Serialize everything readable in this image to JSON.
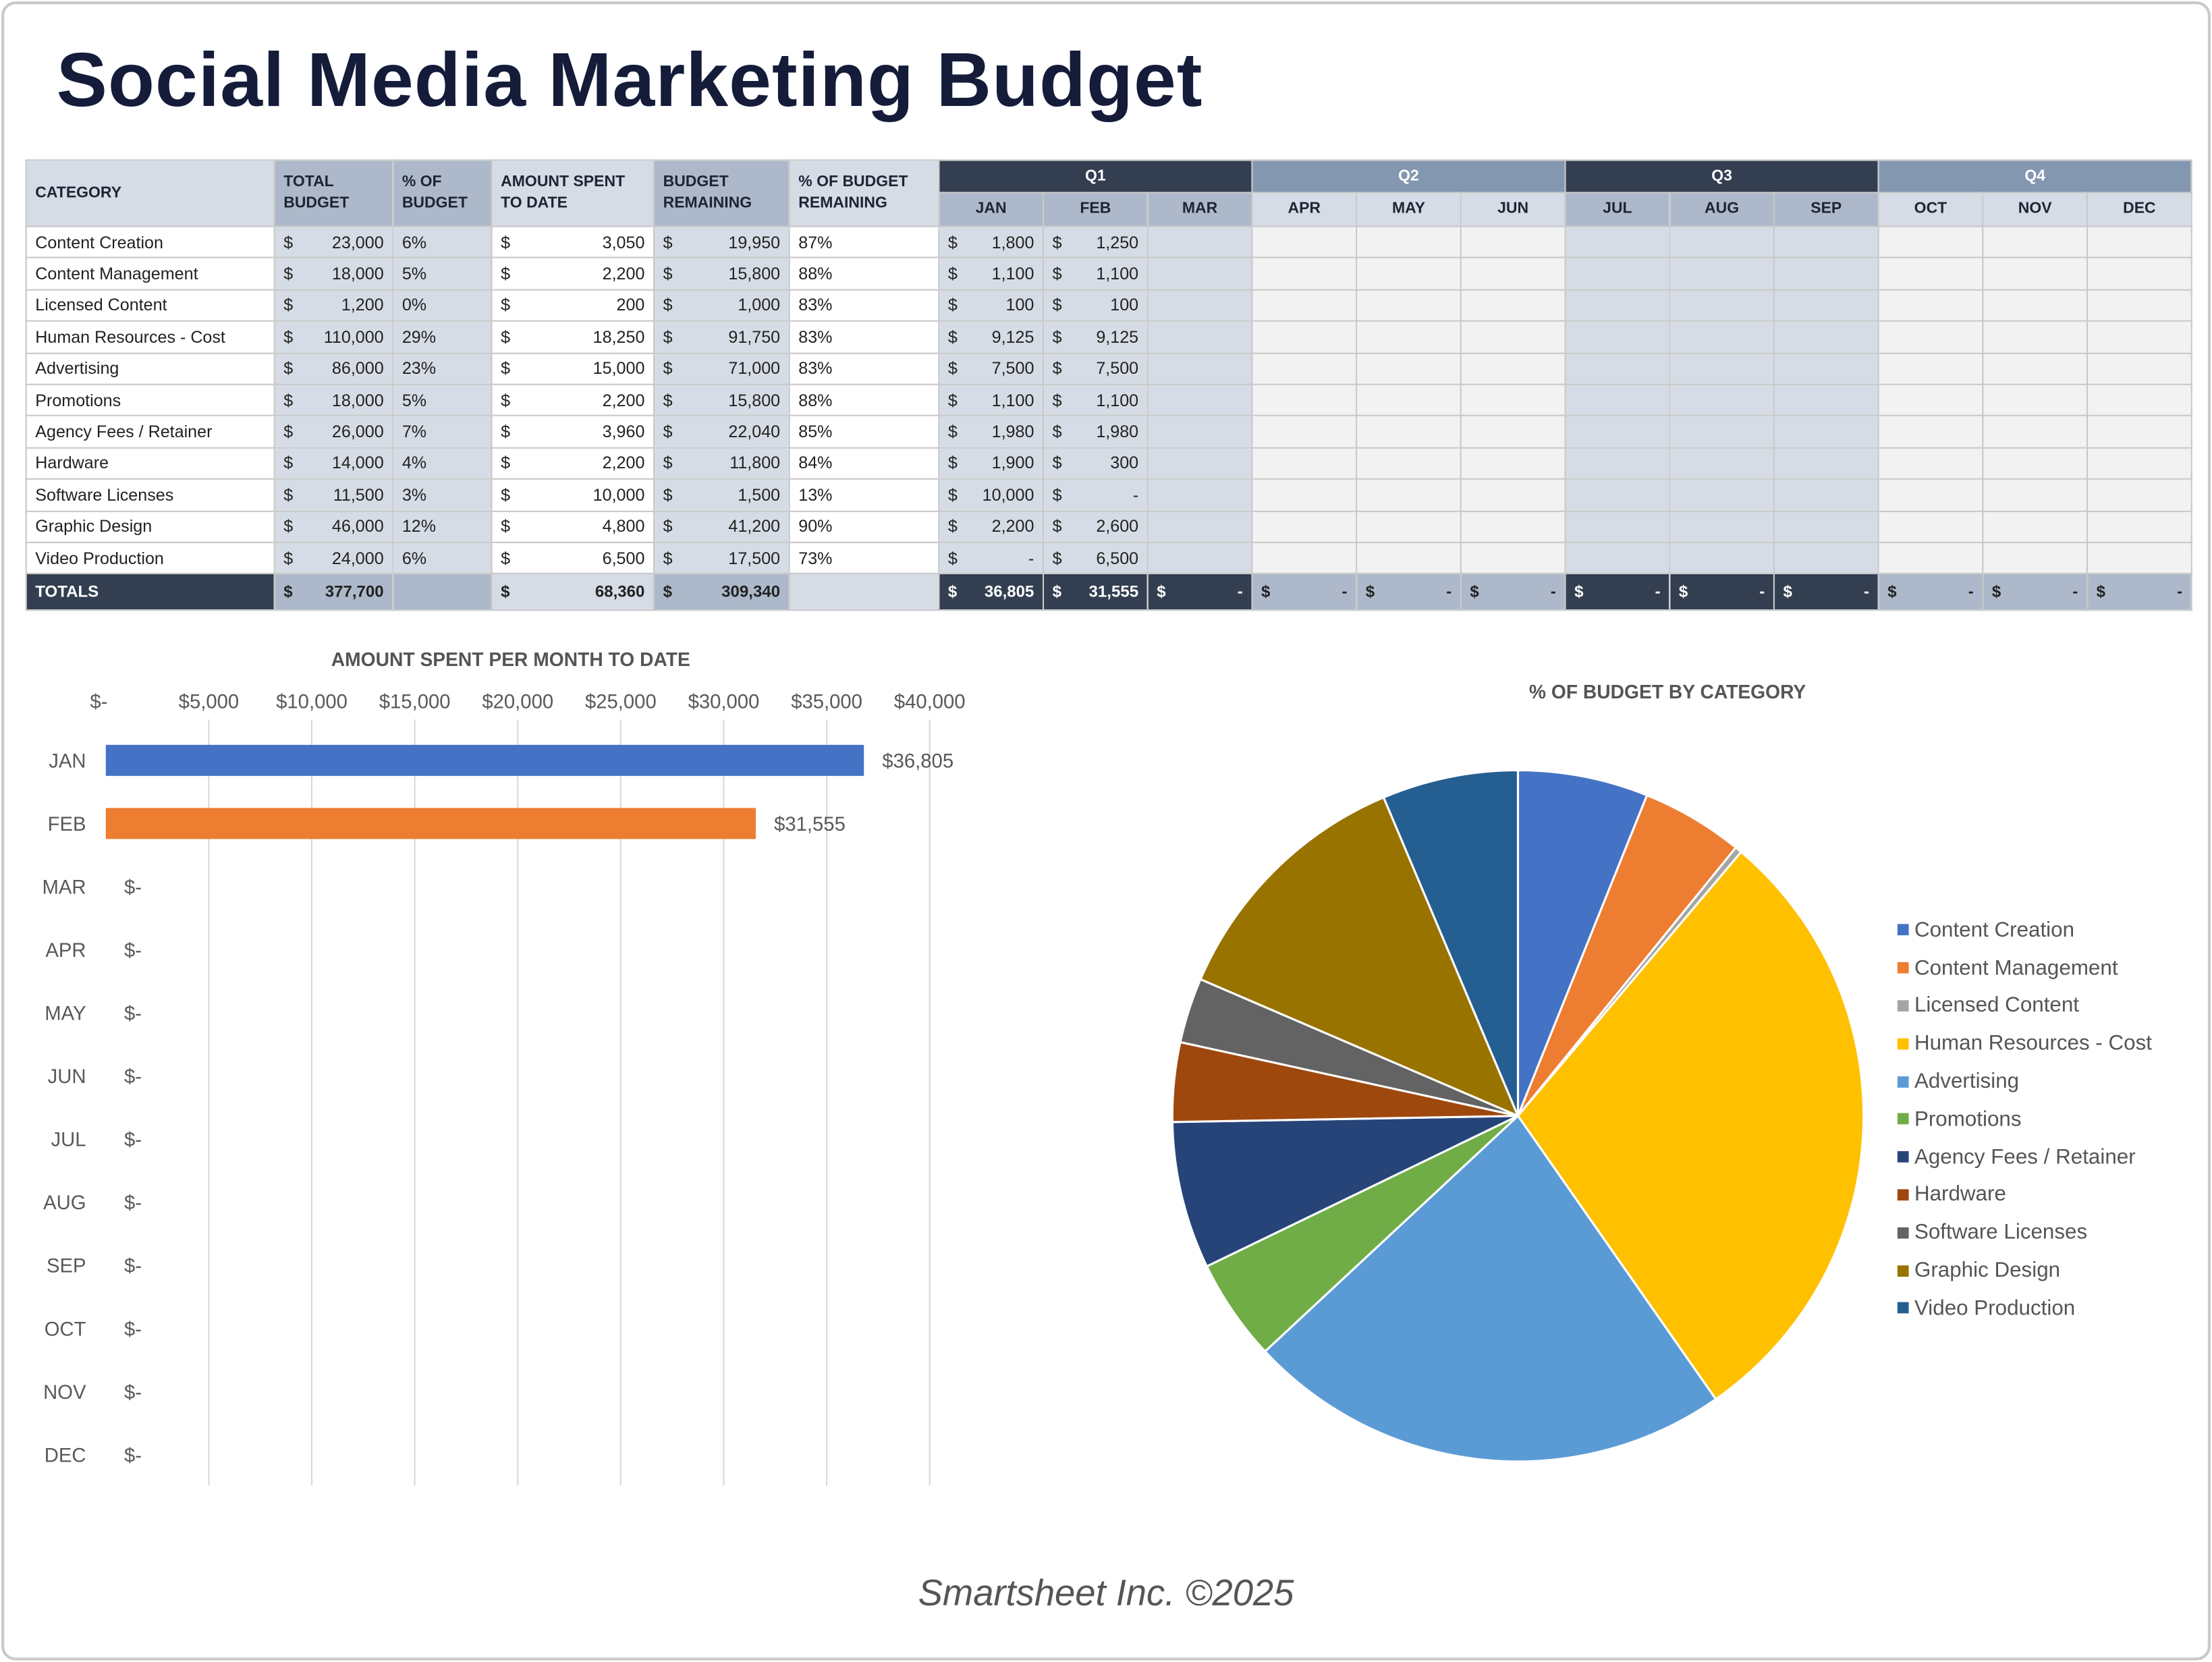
{
  "title": "Social Media Marketing Budget",
  "table": {
    "headers": [
      "CATEGORY",
      "TOTAL BUDGET",
      "% OF BUDGET",
      "AMOUNT SPENT TO DATE",
      "BUDGET REMAINING",
      "% OF BUDGET REMAINING"
    ],
    "quarters": [
      "Q1",
      "Q2",
      "Q3",
      "Q4"
    ],
    "months": [
      "JAN",
      "FEB",
      "MAR",
      "APR",
      "MAY",
      "JUN",
      "JUL",
      "AUG",
      "SEP",
      "OCT",
      "NOV",
      "DEC"
    ],
    "rows": [
      {
        "category": "Content Creation",
        "total": "23,000",
        "pct": "6%",
        "spent": "3,050",
        "remaining": "19,950",
        "pct_remaining": "87%",
        "months": [
          "1,800",
          "1,250"
        ]
      },
      {
        "category": "Content Management",
        "total": "18,000",
        "pct": "5%",
        "spent": "2,200",
        "remaining": "15,800",
        "pct_remaining": "88%",
        "months": [
          "1,100",
          "1,100"
        ]
      },
      {
        "category": "Licensed Content",
        "total": "1,200",
        "pct": "0%",
        "spent": "200",
        "remaining": "1,000",
        "pct_remaining": "83%",
        "months": [
          "100",
          "100"
        ]
      },
      {
        "category": "Human Resources - Cost",
        "total": "110,000",
        "pct": "29%",
        "spent": "18,250",
        "remaining": "91,750",
        "pct_remaining": "83%",
        "months": [
          "9,125",
          "9,125"
        ]
      },
      {
        "category": "Advertising",
        "total": "86,000",
        "pct": "23%",
        "spent": "15,000",
        "remaining": "71,000",
        "pct_remaining": "83%",
        "months": [
          "7,500",
          "7,500"
        ]
      },
      {
        "category": "Promotions",
        "total": "18,000",
        "pct": "5%",
        "spent": "2,200",
        "remaining": "15,800",
        "pct_remaining": "88%",
        "months": [
          "1,100",
          "1,100"
        ]
      },
      {
        "category": "Agency Fees / Retainer",
        "total": "26,000",
        "pct": "7%",
        "spent": "3,960",
        "remaining": "22,040",
        "pct_remaining": "85%",
        "months": [
          "1,980",
          "1,980"
        ]
      },
      {
        "category": "Hardware",
        "total": "14,000",
        "pct": "4%",
        "spent": "2,200",
        "remaining": "11,800",
        "pct_remaining": "84%",
        "months": [
          "1,900",
          "300"
        ]
      },
      {
        "category": "Software Licenses",
        "total": "11,500",
        "pct": "3%",
        "spent": "10,000",
        "remaining": "1,500",
        "pct_remaining": "13%",
        "months": [
          "10,000",
          "-"
        ]
      },
      {
        "category": "Graphic Design",
        "total": "46,000",
        "pct": "12%",
        "spent": "4,800",
        "remaining": "41,200",
        "pct_remaining": "90%",
        "months": [
          "2,200",
          "2,600"
        ]
      },
      {
        "category": "Video Production",
        "total": "24,000",
        "pct": "6%",
        "spent": "6,500",
        "remaining": "17,500",
        "pct_remaining": "73%",
        "months": [
          "-",
          "6,500"
        ]
      }
    ],
    "totals": {
      "label": "TOTALS",
      "total": "377,700",
      "spent": "68,360",
      "remaining": "309,340",
      "months": [
        "36,805",
        "31,555",
        "-",
        "-",
        "-",
        "-",
        "-",
        "-",
        "-",
        "-",
        "-",
        "-"
      ]
    },
    "currency": "$"
  },
  "chart_data": [
    {
      "type": "bar",
      "orientation": "horizontal",
      "title": "AMOUNT SPENT PER MONTH TO DATE",
      "categories": [
        "JAN",
        "FEB",
        "MAR",
        "APR",
        "MAY",
        "JUN",
        "JUL",
        "AUG",
        "SEP",
        "OCT",
        "NOV",
        "DEC"
      ],
      "values": [
        36805,
        31555,
        0,
        0,
        0,
        0,
        0,
        0,
        0,
        0,
        0,
        0
      ],
      "data_labels": [
        "$36,805",
        "$31,555",
        "$-",
        "$-",
        "$-",
        "$-",
        "$-",
        "$-",
        "$-",
        "$-",
        "$-",
        "$-"
      ],
      "xticks": [
        "$-",
        "$5,000",
        "$10,000",
        "$15,000",
        "$20,000",
        "$25,000",
        "$30,000",
        "$35,000",
        "$40,000"
      ],
      "xlim": [
        0,
        40000
      ],
      "grid": true,
      "bar_colors": [
        "#4472c4",
        "#ed7d31"
      ]
    },
    {
      "type": "pie",
      "title": "% OF BUDGET BY CATEGORY",
      "legend_position": "right",
      "labels": [
        "Content Creation",
        "Content Management",
        "Licensed Content",
        "Human Resources - Cost",
        "Advertising",
        "Promotions",
        "Agency Fees / Retainer",
        "Hardware",
        "Software Licenses",
        "Graphic Design",
        "Video Production"
      ],
      "values": [
        23000,
        18000,
        1200,
        110000,
        86000,
        18000,
        26000,
        14000,
        11500,
        46000,
        24000
      ],
      "colors": [
        "#4472c4",
        "#ed7d31",
        "#a5a5a5",
        "#ffc000",
        "#5b9bd5",
        "#70ad47",
        "#264478",
        "#9e480e",
        "#636363",
        "#997300",
        "#255e91"
      ]
    }
  ],
  "footer": "Smartsheet Inc. ©2025"
}
